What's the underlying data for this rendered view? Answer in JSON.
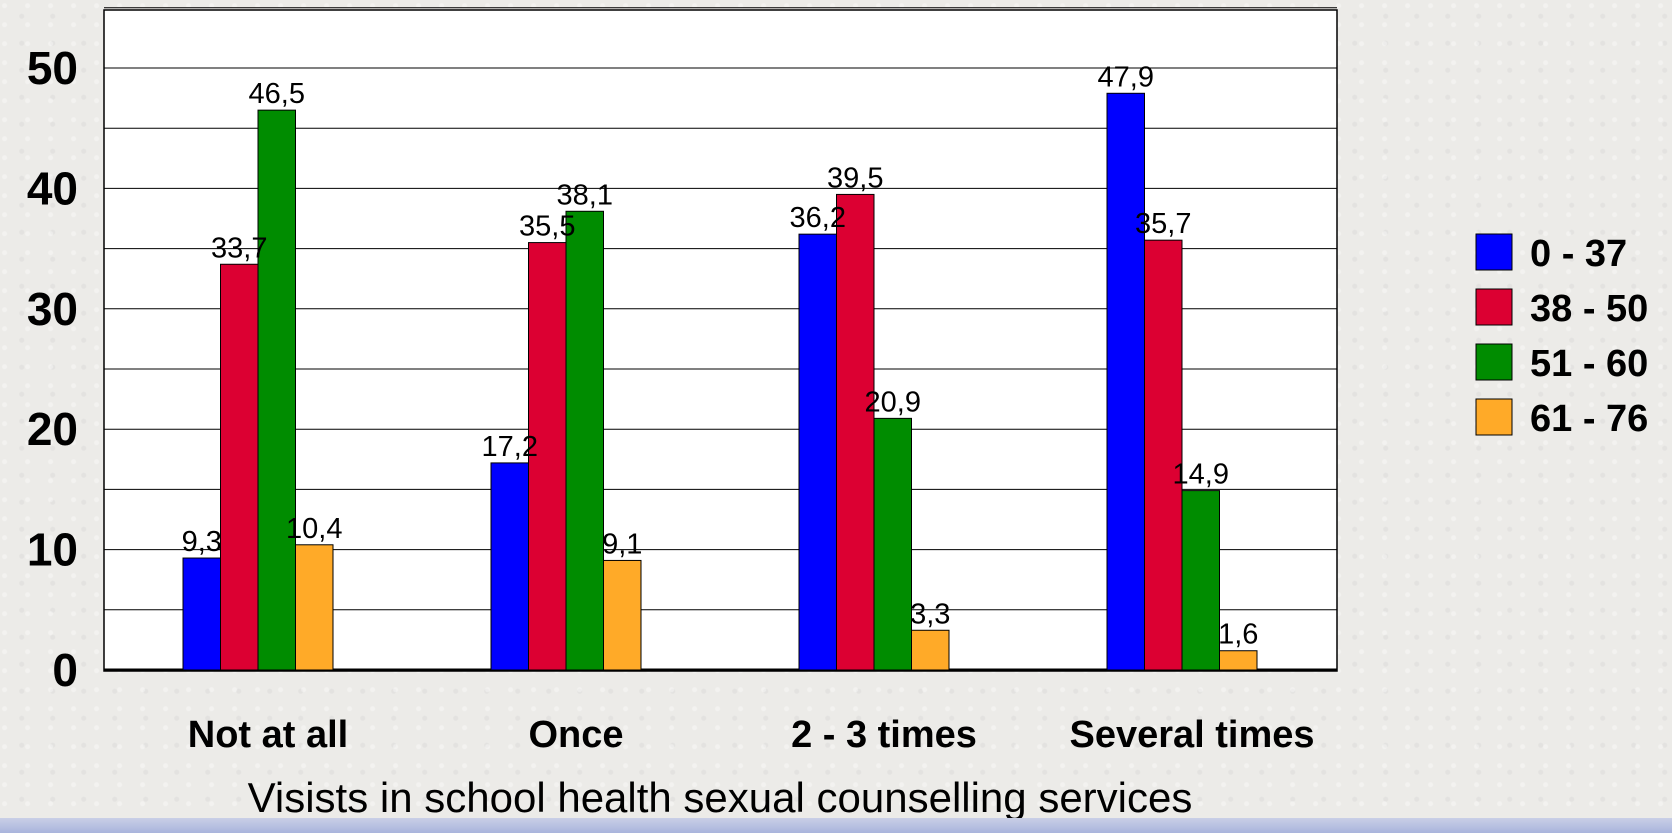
{
  "chart_data": {
    "type": "bar",
    "title": "",
    "xlabel": "Visists in school health sexual counselling services",
    "ylabel": "",
    "categories": [
      "Not at all",
      "Once",
      "2 - 3 times",
      "Several times"
    ],
    "series": [
      {
        "name": "0 - 37",
        "color": "#0000ff",
        "values": [
          9.3,
          17.2,
          36.2,
          47.9
        ],
        "labels": [
          "9,3",
          "17,2",
          "36,2",
          "47,9"
        ]
      },
      {
        "name": "38 - 50",
        "color": "#dc0032",
        "values": [
          33.7,
          35.5,
          39.5,
          35.7
        ],
        "labels": [
          "33,7",
          "35,5",
          "39,5",
          "35,7"
        ]
      },
      {
        "name": "51 - 60",
        "color": "#008c00",
        "values": [
          46.5,
          38.1,
          20.9,
          14.9
        ],
        "labels": [
          "46,5",
          "38,1",
          "20,9",
          "14,9"
        ]
      },
      {
        "name": "61 - 76",
        "color": "#ffaa28",
        "values": [
          10.4,
          9.1,
          3.3,
          1.6
        ],
        "labels": [
          "10,4",
          "9,1",
          "3,3",
          "1,6"
        ]
      }
    ],
    "ylim": [
      0,
      55
    ],
    "yticks": [
      0,
      10,
      20,
      30,
      40,
      50
    ],
    "grid": true,
    "legend_position": "right"
  }
}
